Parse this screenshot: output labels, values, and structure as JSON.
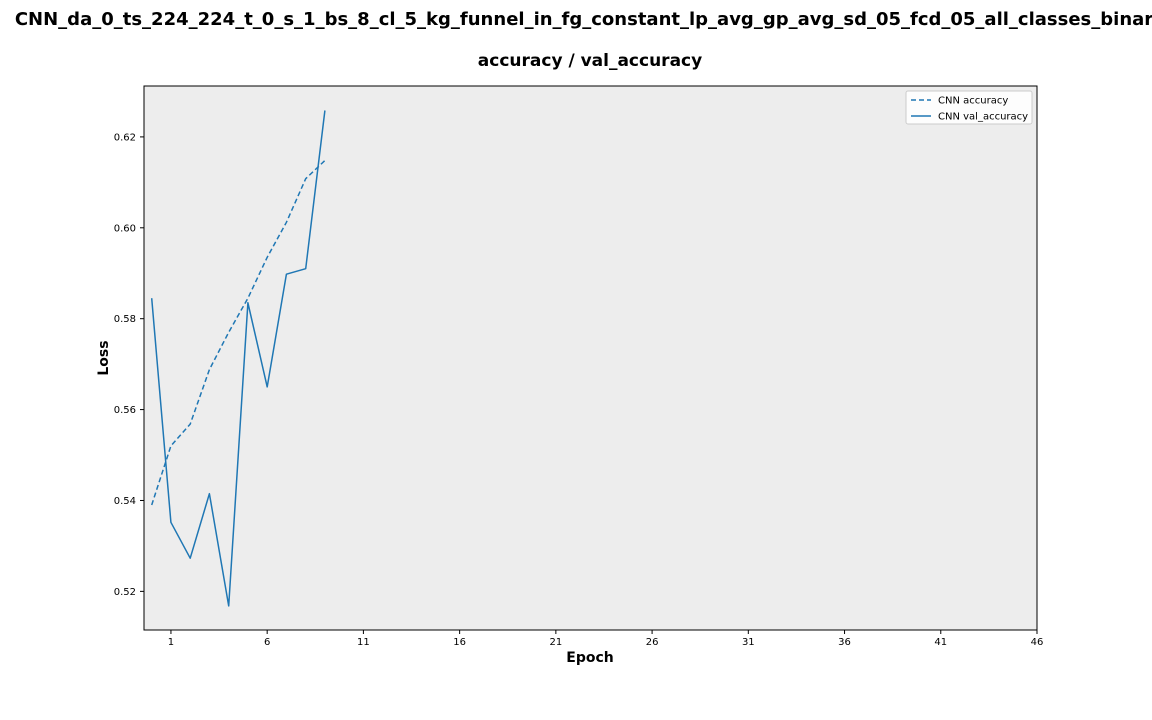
{
  "figure": {
    "suptitle": "CNN_da_0_ts_224_224_t_0_s_1_bs_8_cl_5_kg_funnel_in_fg_constant_lp_avg_gp_avg_sd_05_fcd_05_all_classes_binar"
  },
  "colors": {
    "series": "#1f77b4",
    "plot_bg": "#ededed",
    "axes": "#000000"
  },
  "chart_data": {
    "type": "line",
    "title": "accuracy / val_accuracy",
    "xlabel": "Epoch",
    "ylabel": "Loss",
    "xlim": [
      -0.4,
      46
    ],
    "ylim": [
      0.5115,
      0.6312
    ],
    "x_ticks": [
      1,
      6,
      11,
      16,
      21,
      26,
      31,
      36,
      41,
      46
    ],
    "y_ticks": [
      0.52,
      0.54,
      0.56,
      0.58,
      0.6,
      0.62
    ],
    "y_tick_labels": [
      "0.52",
      "0.54",
      "0.56",
      "0.58",
      "0.60",
      "0.62"
    ],
    "grid": false,
    "legend_position": "top-right",
    "series": [
      {
        "name": "CNN accuracy",
        "style": "dashed",
        "x": [
          0,
          1,
          2,
          3,
          4,
          5,
          6,
          7,
          8,
          9
        ],
        "values": [
          0.539,
          0.552,
          0.5568,
          0.5688,
          0.577,
          0.5845,
          0.5935,
          0.6012,
          0.6108,
          0.6148
        ]
      },
      {
        "name": "CNN val_accuracy",
        "style": "solid",
        "x": [
          0,
          1,
          2,
          3,
          4,
          5,
          6,
          7,
          8,
          9
        ],
        "values": [
          0.5845,
          0.5352,
          0.5273,
          0.5415,
          0.5168,
          0.5835,
          0.565,
          0.5898,
          0.591,
          0.6258
        ]
      }
    ]
  }
}
